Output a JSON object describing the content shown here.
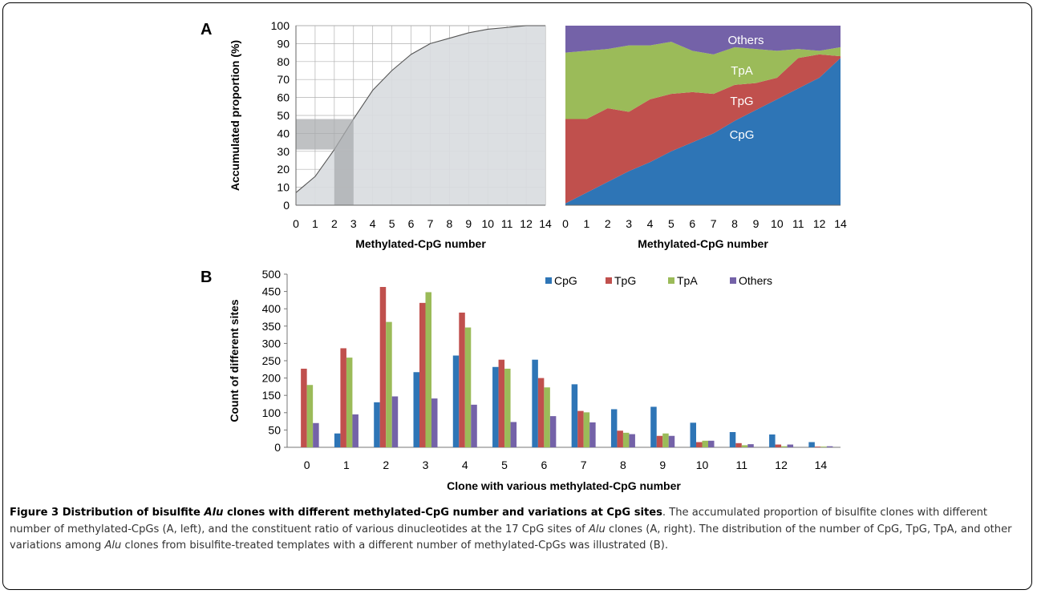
{
  "panel_labels": {
    "a": "A",
    "b": "B"
  },
  "caption": {
    "title_parts": [
      {
        "text": "Figure 3 Distribution of bisulfite ",
        "italic": false
      },
      {
        "text": "Alu",
        "italic": true
      },
      {
        "text": " clones with different methylated-CpG number and variations at CpG sites",
        "italic": false
      }
    ],
    "body_parts": [
      {
        "text": ". The accumulated proportion of bisulfite clones with different number of methylated-CpGs (A, left), and the constituent ratio of various dinucleotides at the 17 CpG sites of ",
        "italic": false
      },
      {
        "text": "Alu",
        "italic": true
      },
      {
        "text": " clones (A, right). The distribution of the number of CpG, TpG, TpA, and other variations among ",
        "italic": false
      },
      {
        "text": "Alu",
        "italic": true
      },
      {
        "text": " clones from bisulfite-treated templates with a different number of methylated-CpGs was illustrated (B).",
        "italic": false
      }
    ]
  },
  "colors": {
    "cpg": "#2e75b6",
    "tpg": "#c0504d",
    "tpa": "#9bbb59",
    "others": "#7462a8",
    "cumulative_fill": "#d9dce0",
    "highlight": "#a9acaf"
  },
  "chart_data": [
    {
      "id": "A-left",
      "type": "area",
      "title": "",
      "xlabel": "Methylated-CpG number",
      "ylabel": "Accumulated proportion (%)",
      "x": [
        0,
        1,
        2,
        3,
        4,
        5,
        6,
        7,
        8,
        9,
        10,
        11,
        12,
        14
      ],
      "x_ticks": [
        "0",
        "1",
        "2",
        "3",
        "4",
        "5",
        "6",
        "7",
        "8",
        "9",
        "10",
        "11",
        "12",
        "14"
      ],
      "values": [
        7,
        16,
        31,
        48,
        64,
        75,
        84,
        90,
        93,
        96,
        98,
        99,
        100,
        100
      ],
      "ylim": [
        0,
        100
      ],
      "y_ticks": [
        0,
        10,
        20,
        30,
        40,
        50,
        60,
        70,
        80,
        90,
        100
      ],
      "grid": true,
      "highlight": {
        "x_range": [
          2,
          3
        ],
        "y_range": [
          31,
          48
        ]
      }
    },
    {
      "id": "A-right",
      "type": "area",
      "stacked_percent": true,
      "title": "",
      "xlabel": "Methylated-CpG number",
      "x": [
        0,
        1,
        2,
        3,
        4,
        5,
        6,
        7,
        8,
        9,
        10,
        11,
        12,
        14
      ],
      "x_ticks": [
        "0",
        "1",
        "2",
        "3",
        "4",
        "5",
        "6",
        "7",
        "8",
        "9",
        "10",
        "11",
        "12",
        "14"
      ],
      "ylim": [
        0,
        100
      ],
      "series": [
        {
          "name": "CpG",
          "values": [
            1,
            7,
            13,
            19,
            24,
            30,
            35,
            40,
            47,
            53,
            59,
            65,
            71,
            82
          ]
        },
        {
          "name": "TpG",
          "values": [
            47,
            41,
            41,
            33,
            35,
            32,
            28,
            22,
            20,
            15,
            12,
            17,
            13,
            1
          ]
        },
        {
          "name": "TpA",
          "values": [
            37,
            38,
            33,
            37,
            30,
            29,
            23,
            22,
            21,
            19,
            15,
            5,
            2,
            5
          ]
        },
        {
          "name": "Others",
          "values": [
            15,
            14,
            13,
            11,
            11,
            9,
            14,
            16,
            12,
            13,
            14,
            13,
            14,
            12
          ]
        }
      ]
    },
    {
      "id": "B",
      "type": "bar",
      "title": "",
      "xlabel": "Clone with various methylated-CpG number",
      "ylabel": "Count of different sites",
      "categories": [
        "0",
        "1",
        "2",
        "3",
        "4",
        "5",
        "6",
        "7",
        "8",
        "9",
        "10",
        "11",
        "12",
        "14"
      ],
      "ylim": [
        0,
        500
      ],
      "y_ticks": [
        0,
        50,
        100,
        150,
        200,
        250,
        300,
        350,
        400,
        450,
        500
      ],
      "legend_position": "top-right",
      "series": [
        {
          "name": "CpG",
          "values": [
            0,
            40,
            130,
            217,
            265,
            232,
            253,
            182,
            110,
            117,
            71,
            44,
            37,
            15
          ]
        },
        {
          "name": "TpG",
          "values": [
            227,
            286,
            463,
            417,
            389,
            253,
            200,
            105,
            48,
            33,
            15,
            12,
            8,
            2
          ]
        },
        {
          "name": "TpA",
          "values": [
            180,
            259,
            362,
            448,
            346,
            227,
            173,
            101,
            42,
            40,
            19,
            6,
            3,
            2
          ]
        },
        {
          "name": "Others",
          "values": [
            70,
            95,
            147,
            141,
            123,
            73,
            90,
            72,
            38,
            33,
            19,
            9,
            8,
            3
          ]
        }
      ]
    }
  ]
}
